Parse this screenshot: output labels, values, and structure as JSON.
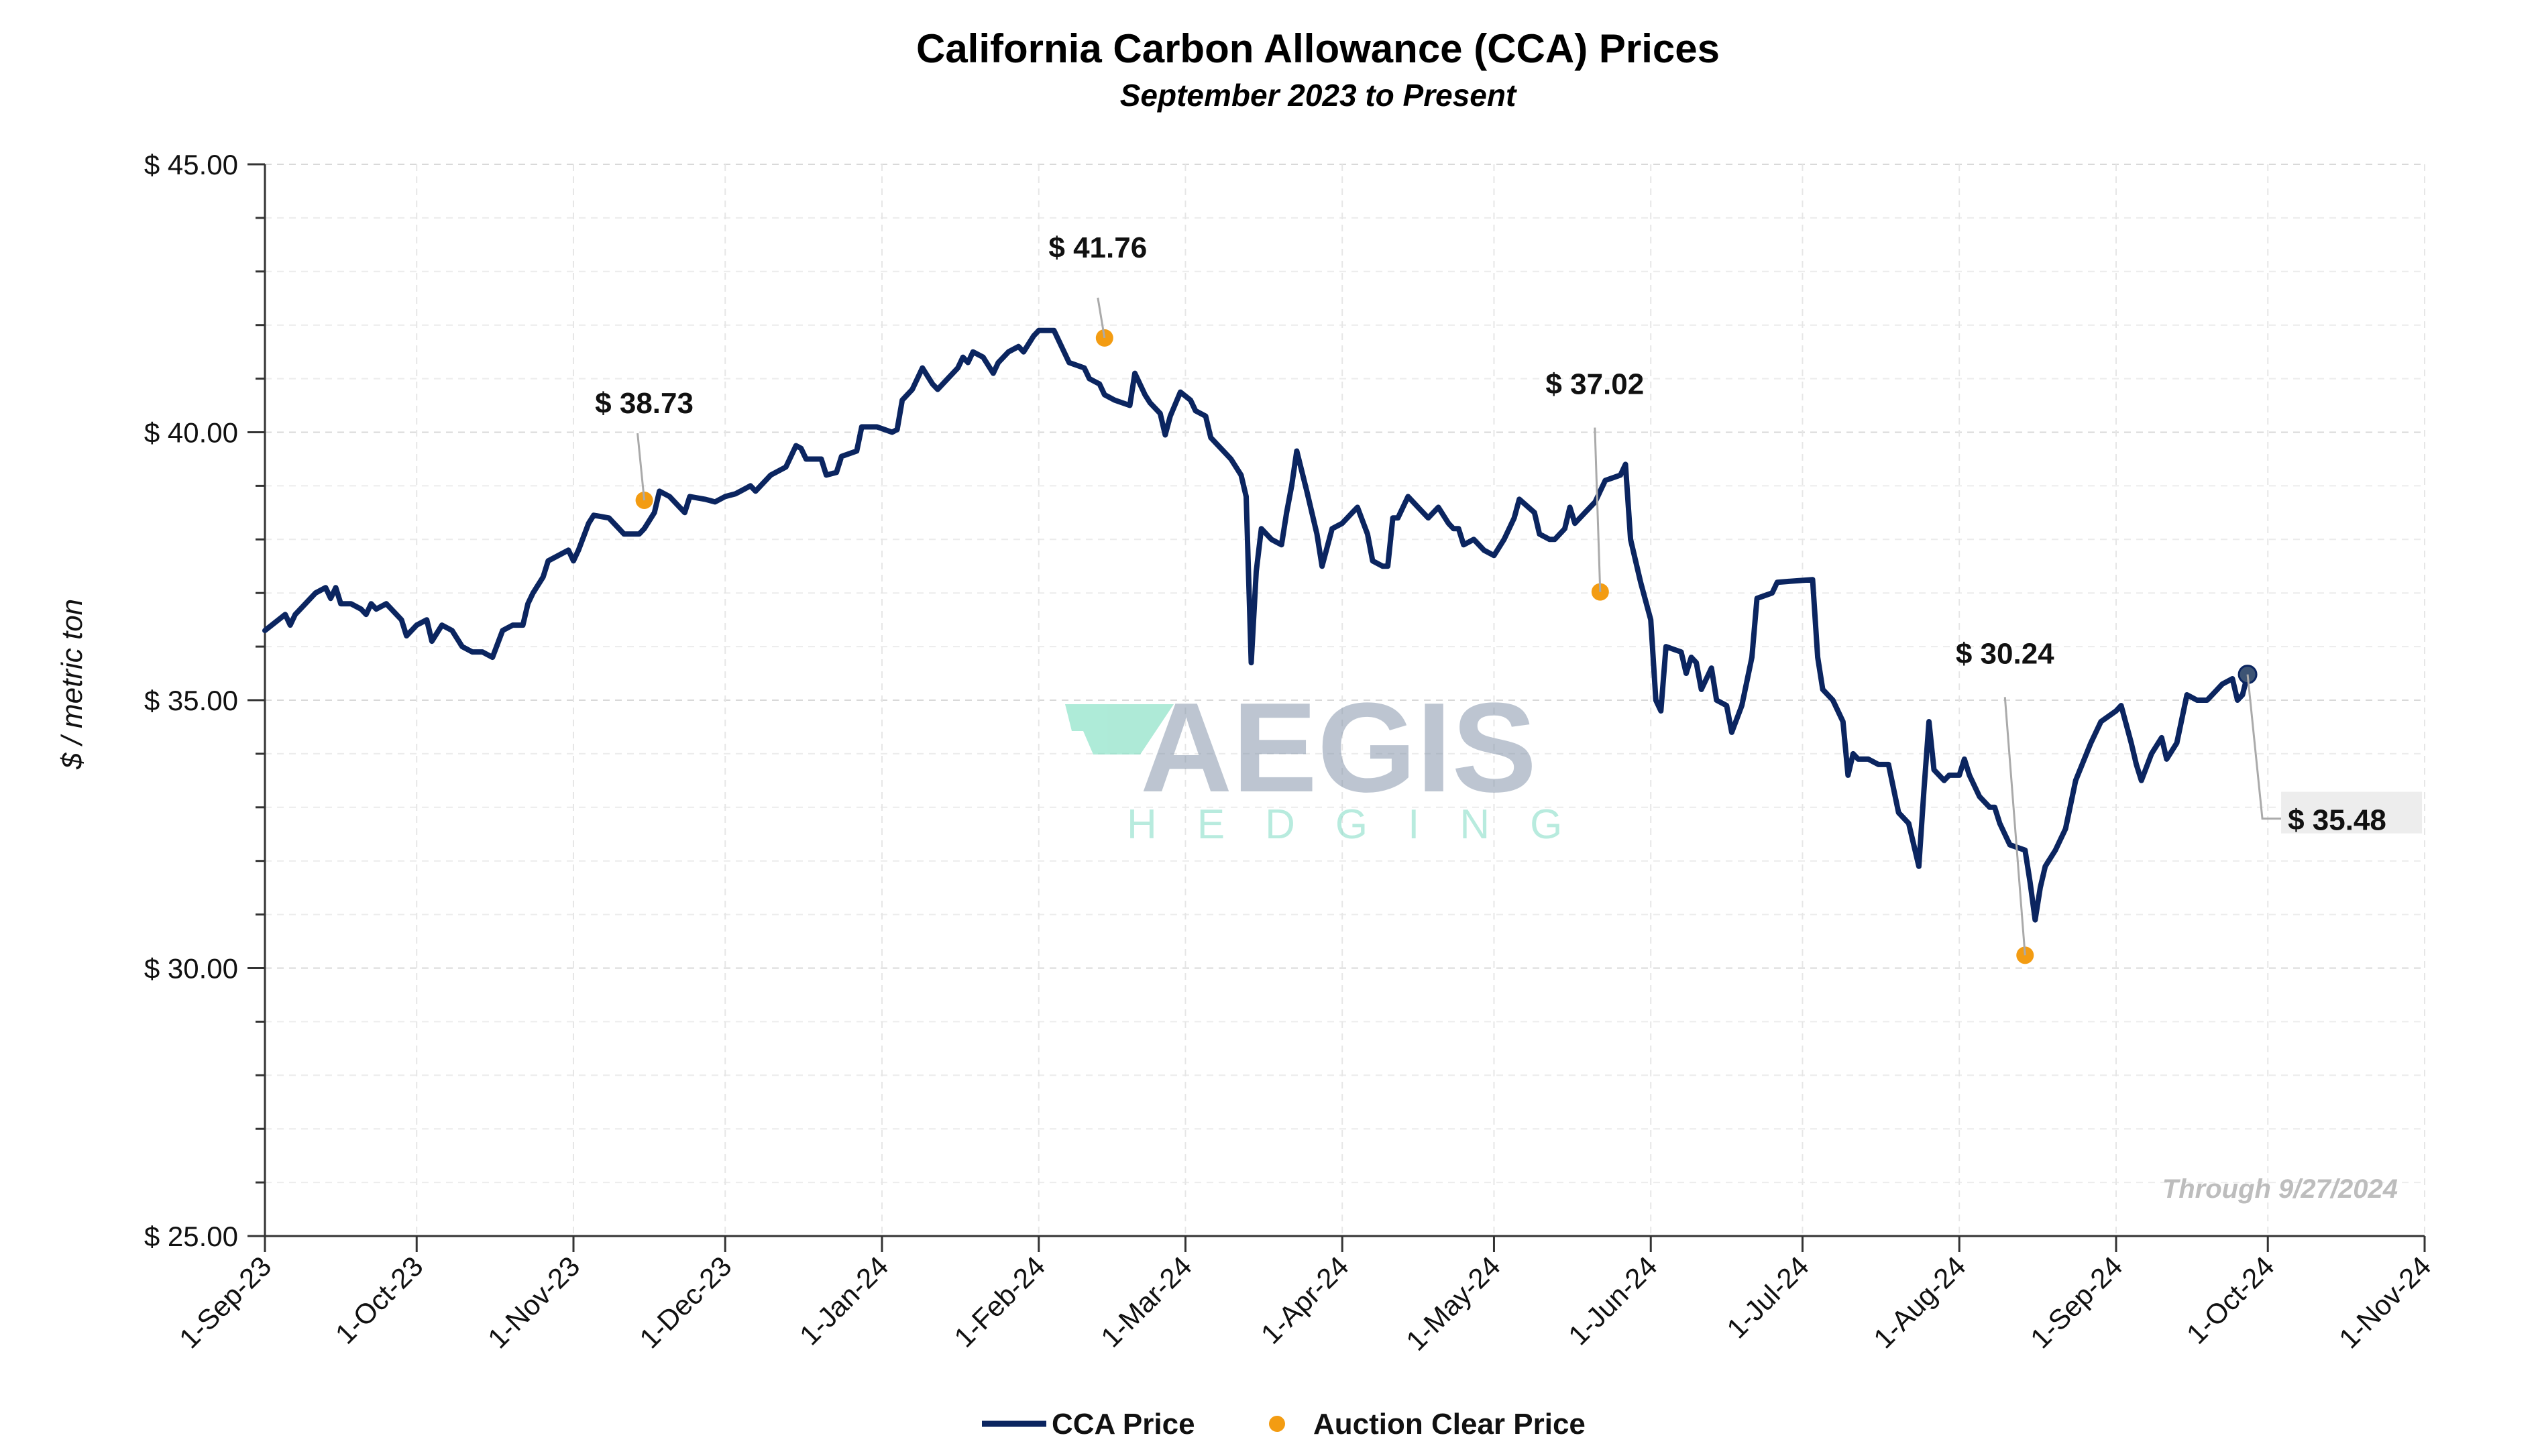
{
  "chart_data": {
    "type": "line",
    "title": "California Carbon Allowance (CCA) Prices",
    "subtitle": "September 2023 to Present",
    "ylabel": "$ / metric ton",
    "xlabel": "",
    "ylim": [
      25,
      45
    ],
    "y_ticks": [
      25,
      30,
      35,
      40,
      45
    ],
    "y_tick_labels": [
      "$ 25.00",
      "$ 30.00",
      "$ 35.00",
      "$ 40.00",
      "$ 45.00"
    ],
    "xlim": [
      "2023-09-01",
      "2024-11-01"
    ],
    "x_ticks": [
      "2023-09-01",
      "2023-10-01",
      "2023-11-01",
      "2023-12-01",
      "2024-01-01",
      "2024-02-01",
      "2024-03-01",
      "2024-04-01",
      "2024-05-01",
      "2024-06-01",
      "2024-07-01",
      "2024-08-01",
      "2024-09-01",
      "2024-10-01",
      "2024-11-01"
    ],
    "x_tick_labels": [
      "1-Sep-23",
      "1-Oct-23",
      "1-Nov-23",
      "1-Dec-23",
      "1-Jan-24",
      "1-Feb-24",
      "1-Mar-24",
      "1-Apr-24",
      "1-May-24",
      "1-Jun-24",
      "1-Jul-24",
      "1-Aug-24",
      "1-Sep-24",
      "1-Oct-24",
      "1-Nov-24"
    ],
    "grid": true,
    "legend_position": "bottom-center",
    "series": [
      {
        "name": "CCA Price",
        "color": "#0b2560",
        "points": [
          [
            "2023-09-01",
            36.3
          ],
          [
            "2023-09-05",
            36.6
          ],
          [
            "2023-09-06",
            36.4
          ],
          [
            "2023-09-07",
            36.6
          ],
          [
            "2023-09-09",
            36.8
          ],
          [
            "2023-09-11",
            37.0
          ],
          [
            "2023-09-13",
            37.1
          ],
          [
            "2023-09-14",
            36.9
          ],
          [
            "2023-09-15",
            37.1
          ],
          [
            "2023-09-16",
            36.8
          ],
          [
            "2023-09-18",
            36.8
          ],
          [
            "2023-09-20",
            36.7
          ],
          [
            "2023-09-21",
            36.6
          ],
          [
            "2023-09-22",
            36.8
          ],
          [
            "2023-09-23",
            36.7
          ],
          [
            "2023-09-25",
            36.8
          ],
          [
            "2023-09-27",
            36.6
          ],
          [
            "2023-09-28",
            36.5
          ],
          [
            "2023-09-29",
            36.2
          ],
          [
            "2023-10-01",
            36.4
          ],
          [
            "2023-10-03",
            36.5
          ],
          [
            "2023-10-04",
            36.1
          ],
          [
            "2023-10-06",
            36.4
          ],
          [
            "2023-10-08",
            36.3
          ],
          [
            "2023-10-10",
            36.0
          ],
          [
            "2023-10-12",
            35.9
          ],
          [
            "2023-10-14",
            35.9
          ],
          [
            "2023-10-16",
            35.8
          ],
          [
            "2023-10-18",
            36.3
          ],
          [
            "2023-10-20",
            36.4
          ],
          [
            "2023-10-22",
            36.4
          ],
          [
            "2023-10-23",
            36.8
          ],
          [
            "2023-10-24",
            37.0
          ],
          [
            "2023-10-26",
            37.3
          ],
          [
            "2023-10-27",
            37.6
          ],
          [
            "2023-10-29",
            37.7
          ],
          [
            "2023-10-31",
            37.8
          ],
          [
            "2023-11-01",
            37.6
          ],
          [
            "2023-11-02",
            37.8
          ],
          [
            "2023-11-04",
            38.3
          ],
          [
            "2023-11-05",
            38.45
          ],
          [
            "2023-11-08",
            38.4
          ],
          [
            "2023-11-10",
            38.2
          ],
          [
            "2023-11-11",
            38.1
          ],
          [
            "2023-11-14",
            38.1
          ],
          [
            "2023-11-15",
            38.2
          ],
          [
            "2023-11-17",
            38.5
          ],
          [
            "2023-11-18",
            38.9
          ],
          [
            "2023-11-20",
            38.8
          ],
          [
            "2023-11-22",
            38.6
          ],
          [
            "2023-11-23",
            38.5
          ],
          [
            "2023-11-24",
            38.8
          ],
          [
            "2023-11-27",
            38.75
          ],
          [
            "2023-11-29",
            38.7
          ],
          [
            "2023-12-01",
            38.8
          ],
          [
            "2023-12-03",
            38.85
          ],
          [
            "2023-12-04",
            38.9
          ],
          [
            "2023-12-06",
            39.0
          ],
          [
            "2023-12-07",
            38.9
          ],
          [
            "2023-12-08",
            39.0
          ],
          [
            "2023-12-10",
            39.2
          ],
          [
            "2023-12-13",
            39.35
          ],
          [
            "2023-12-15",
            39.75
          ],
          [
            "2023-12-16",
            39.7
          ],
          [
            "2023-12-17",
            39.5
          ],
          [
            "2023-12-20",
            39.5
          ],
          [
            "2023-12-21",
            39.2
          ],
          [
            "2023-12-23",
            39.25
          ],
          [
            "2023-12-24",
            39.55
          ],
          [
            "2023-12-27",
            39.65
          ],
          [
            "2023-12-28",
            40.1
          ],
          [
            "2023-12-31",
            40.1
          ],
          [
            "2024-01-03",
            40.0
          ],
          [
            "2024-01-04",
            40.05
          ],
          [
            "2024-01-05",
            40.6
          ],
          [
            "2024-01-07",
            40.8
          ],
          [
            "2024-01-09",
            41.2
          ],
          [
            "2024-01-11",
            40.9
          ],
          [
            "2024-01-12",
            40.8
          ],
          [
            "2024-01-14",
            41.0
          ],
          [
            "2024-01-16",
            41.2
          ],
          [
            "2024-01-17",
            41.4
          ],
          [
            "2024-01-18",
            41.3
          ],
          [
            "2024-01-19",
            41.5
          ],
          [
            "2024-01-21",
            41.4
          ],
          [
            "2024-01-23",
            41.1
          ],
          [
            "2024-01-24",
            41.3
          ],
          [
            "2024-01-26",
            41.5
          ],
          [
            "2024-01-28",
            41.6
          ],
          [
            "2024-01-29",
            41.5
          ],
          [
            "2024-01-31",
            41.8
          ],
          [
            "2024-02-01",
            41.9
          ],
          [
            "2024-02-04",
            41.9
          ],
          [
            "2024-02-06",
            41.5
          ],
          [
            "2024-02-07",
            41.3
          ],
          [
            "2024-02-10",
            41.2
          ],
          [
            "2024-02-11",
            41.0
          ],
          [
            "2024-02-12",
            40.95
          ],
          [
            "2024-02-13",
            40.9
          ],
          [
            "2024-02-14",
            40.7
          ],
          [
            "2024-02-16",
            40.6
          ],
          [
            "2024-02-19",
            40.5
          ],
          [
            "2024-02-20",
            41.1
          ],
          [
            "2024-02-22",
            40.7
          ],
          [
            "2024-02-23",
            40.55
          ],
          [
            "2024-02-25",
            40.35
          ],
          [
            "2024-02-26",
            39.95
          ],
          [
            "2024-02-27",
            40.3
          ],
          [
            "2024-02-29",
            40.75
          ],
          [
            "2024-03-02",
            40.6
          ],
          [
            "2024-03-03",
            40.4
          ],
          [
            "2024-03-05",
            40.3
          ],
          [
            "2024-03-06",
            39.9
          ],
          [
            "2024-03-07",
            39.8
          ],
          [
            "2024-03-09",
            39.6
          ],
          [
            "2024-03-10",
            39.5
          ],
          [
            "2024-03-12",
            39.2
          ],
          [
            "2024-03-13",
            38.8
          ],
          [
            "2024-03-14",
            35.7
          ],
          [
            "2024-03-15",
            37.4
          ],
          [
            "2024-03-16",
            38.2
          ],
          [
            "2024-03-18",
            38.0
          ],
          [
            "2024-03-20",
            37.9
          ],
          [
            "2024-03-21",
            38.5
          ],
          [
            "2024-03-22",
            39.0
          ],
          [
            "2024-03-23",
            39.65
          ],
          [
            "2024-03-25",
            38.9
          ],
          [
            "2024-03-27",
            38.1
          ],
          [
            "2024-03-28",
            37.5
          ],
          [
            "2024-03-30",
            38.2
          ],
          [
            "2024-04-01",
            38.3
          ],
          [
            "2024-04-03",
            38.5
          ],
          [
            "2024-04-04",
            38.6
          ],
          [
            "2024-04-06",
            38.1
          ],
          [
            "2024-04-07",
            37.6
          ],
          [
            "2024-04-09",
            37.5
          ],
          [
            "2024-04-10",
            37.5
          ],
          [
            "2024-04-11",
            38.4
          ],
          [
            "2024-04-12",
            38.4
          ],
          [
            "2024-04-14",
            38.8
          ],
          [
            "2024-04-16",
            38.6
          ],
          [
            "2024-04-18",
            38.4
          ],
          [
            "2024-04-19",
            38.5
          ],
          [
            "2024-04-20",
            38.6
          ],
          [
            "2024-04-22",
            38.3
          ],
          [
            "2024-04-23",
            38.2
          ],
          [
            "2024-04-24",
            38.2
          ],
          [
            "2024-04-25",
            37.9
          ],
          [
            "2024-04-27",
            38.0
          ],
          [
            "2024-04-29",
            37.8
          ],
          [
            "2024-05-01",
            37.7
          ],
          [
            "2024-05-03",
            38.0
          ],
          [
            "2024-05-05",
            38.4
          ],
          [
            "2024-05-06",
            38.75
          ],
          [
            "2024-05-09",
            38.5
          ],
          [
            "2024-05-10",
            38.1
          ],
          [
            "2024-05-12",
            38.0
          ],
          [
            "2024-05-13",
            38.0
          ],
          [
            "2024-05-15",
            38.2
          ],
          [
            "2024-05-16",
            38.6
          ],
          [
            "2024-05-17",
            38.3
          ],
          [
            "2024-05-19",
            38.5
          ],
          [
            "2024-05-20",
            38.6
          ],
          [
            "2024-05-21",
            38.7
          ],
          [
            "2024-05-22",
            38.9
          ],
          [
            "2024-05-23",
            39.1
          ],
          [
            "2024-05-26",
            39.2
          ],
          [
            "2024-05-27",
            39.4
          ],
          [
            "2024-05-28",
            38.0
          ],
          [
            "2024-05-30",
            37.2
          ],
          [
            "2024-06-01",
            36.5
          ],
          [
            "2024-06-02",
            35.0
          ],
          [
            "2024-06-03",
            34.8
          ],
          [
            "2024-06-04",
            36.0
          ],
          [
            "2024-06-07",
            35.9
          ],
          [
            "2024-06-08",
            35.5
          ],
          [
            "2024-06-09",
            35.8
          ],
          [
            "2024-06-10",
            35.7
          ],
          [
            "2024-06-11",
            35.2
          ],
          [
            "2024-06-13",
            35.6
          ],
          [
            "2024-06-14",
            35.0
          ],
          [
            "2024-06-16",
            34.9
          ],
          [
            "2024-06-17",
            34.4
          ],
          [
            "2024-06-19",
            34.9
          ],
          [
            "2024-06-21",
            35.8
          ],
          [
            "2024-06-22",
            36.9
          ],
          [
            "2024-06-25",
            37.0
          ],
          [
            "2024-06-26",
            37.2
          ],
          [
            "2024-07-03",
            37.25
          ],
          [
            "2024-07-04",
            35.8
          ],
          [
            "2024-07-05",
            35.2
          ],
          [
            "2024-07-07",
            35.0
          ],
          [
            "2024-07-09",
            34.6
          ],
          [
            "2024-07-10",
            33.6
          ],
          [
            "2024-07-11",
            34.0
          ],
          [
            "2024-07-12",
            33.9
          ],
          [
            "2024-07-14",
            33.9
          ],
          [
            "2024-07-16",
            33.8
          ],
          [
            "2024-07-18",
            33.8
          ],
          [
            "2024-07-20",
            32.9
          ],
          [
            "2024-07-22",
            32.7
          ],
          [
            "2024-07-24",
            31.9
          ],
          [
            "2024-07-25",
            33.3
          ],
          [
            "2024-07-26",
            34.6
          ],
          [
            "2024-07-27",
            33.7
          ],
          [
            "2024-07-29",
            33.5
          ],
          [
            "2024-07-30",
            33.6
          ],
          [
            "2024-08-01",
            33.6
          ],
          [
            "2024-08-02",
            33.9
          ],
          [
            "2024-08-03",
            33.6
          ],
          [
            "2024-08-05",
            33.2
          ],
          [
            "2024-08-07",
            33.0
          ],
          [
            "2024-08-08",
            33.0
          ],
          [
            "2024-08-09",
            32.7
          ],
          [
            "2024-08-11",
            32.3
          ],
          [
            "2024-08-14",
            32.2
          ],
          [
            "2024-08-15",
            31.6
          ],
          [
            "2024-08-16",
            30.9
          ],
          [
            "2024-08-17",
            31.5
          ],
          [
            "2024-08-18",
            31.9
          ],
          [
            "2024-08-20",
            32.2
          ],
          [
            "2024-08-22",
            32.6
          ],
          [
            "2024-08-24",
            33.5
          ],
          [
            "2024-08-27",
            34.2
          ],
          [
            "2024-08-29",
            34.6
          ],
          [
            "2024-09-01",
            34.8
          ],
          [
            "2024-09-02",
            34.9
          ],
          [
            "2024-09-04",
            34.2
          ],
          [
            "2024-09-05",
            33.8
          ],
          [
            "2024-09-06",
            33.5
          ],
          [
            "2024-09-08",
            34.0
          ],
          [
            "2024-09-10",
            34.3
          ],
          [
            "2024-09-11",
            33.9
          ],
          [
            "2024-09-13",
            34.2
          ],
          [
            "2024-09-15",
            35.1
          ],
          [
            "2024-09-17",
            35.0
          ],
          [
            "2024-09-19",
            35.0
          ],
          [
            "2024-09-20",
            35.1
          ],
          [
            "2024-09-22",
            35.3
          ],
          [
            "2024-09-24",
            35.4
          ],
          [
            "2024-09-25",
            35.0
          ],
          [
            "2024-09-26",
            35.1
          ],
          [
            "2024-09-27",
            35.48
          ]
        ]
      },
      {
        "name": "Auction Clear Price",
        "color": "#f39c12",
        "points": [
          [
            "2023-11-15",
            38.73
          ],
          [
            "2024-02-14",
            41.76
          ],
          [
            "2024-05-22",
            37.02
          ],
          [
            "2024-08-14",
            30.24
          ]
        ]
      }
    ],
    "annotations": [
      {
        "text": "$ 38.73",
        "x": "2023-11-15",
        "y": 38.73
      },
      {
        "text": "$ 41.76",
        "x": "2024-02-14",
        "y": 41.76
      },
      {
        "text": "$ 37.02",
        "x": "2024-05-22",
        "y": 37.02
      },
      {
        "text": "$ 30.24",
        "x": "2024-08-14",
        "y": 30.24
      },
      {
        "text": "$ 35.48",
        "x": "2024-09-27",
        "y": 35.48
      }
    ],
    "note": "Through 9/27/2024",
    "watermark": {
      "line1": "AEGIS",
      "line2": "HEDGING"
    },
    "legend": [
      {
        "label": "CCA Price",
        "marker": "line",
        "color": "#0b2560"
      },
      {
        "label": "Auction Clear Price",
        "marker": "dot",
        "color": "#f39c12"
      }
    ]
  }
}
